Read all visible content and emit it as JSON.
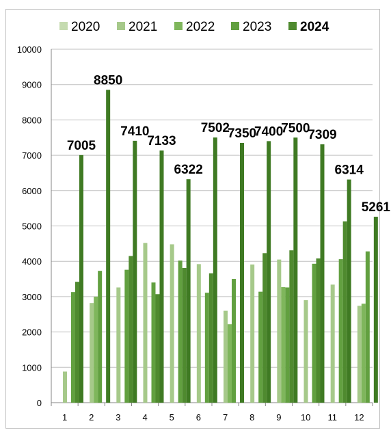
{
  "chart_data": {
    "type": "bar",
    "title": "",
    "xlabel": "",
    "ylabel": "",
    "ylim": [
      0,
      10000
    ],
    "yticks": [
      0,
      1000,
      2000,
      3000,
      4000,
      5000,
      6000,
      7000,
      8000,
      9000,
      10000
    ],
    "grid": true,
    "legend_position": "top",
    "categories": [
      "1",
      "2",
      "3",
      "4",
      "5",
      "6",
      "7",
      "8",
      "9",
      "10",
      "11",
      "12"
    ],
    "series": [
      {
        "name": "2020",
        "color": "#c5dbb0",
        "bold": false,
        "values": [
          0,
          0,
          0,
          0,
          0,
          0,
          0,
          0,
          0,
          0,
          0,
          0
        ]
      },
      {
        "name": "2021",
        "color": "#a6c98a",
        "bold": false,
        "values": [
          880,
          2820,
          3260,
          4520,
          4480,
          3920,
          2600,
          3910,
          4050,
          2900,
          3340,
          2740
        ]
      },
      {
        "name": "2022",
        "color": "#7fb65c",
        "bold": false,
        "values": [
          0,
          3000,
          0,
          0,
          0,
          0,
          2220,
          0,
          3270,
          0,
          0,
          2800
        ]
      },
      {
        "name": "2023",
        "color": "#62a040",
        "bold": false,
        "values": [
          3130,
          3730,
          3760,
          3400,
          4020,
          3110,
          3500,
          3140,
          3260,
          3930,
          4060,
          4280
        ]
      },
      {
        "name": "2024",
        "color": "#4f8a2f",
        "bold": true,
        "values": [
          3420,
          0,
          4150,
          3070,
          3810,
          3660,
          0,
          4230,
          4310,
          4080,
          5130,
          0
        ]
      }
    ],
    "extra_bars": {
      "color": "#3f7a23",
      "values": [
        7005,
        8850,
        7410,
        7133,
        6322,
        7502,
        7350,
        7400,
        7500,
        7309,
        6314,
        5261
      ]
    },
    "data_labels": [
      "7005",
      "8850",
      "7410",
      "7133",
      "6322",
      "7502",
      "7350",
      "7400",
      "7500",
      "7309",
      "6314",
      "5261"
    ]
  }
}
